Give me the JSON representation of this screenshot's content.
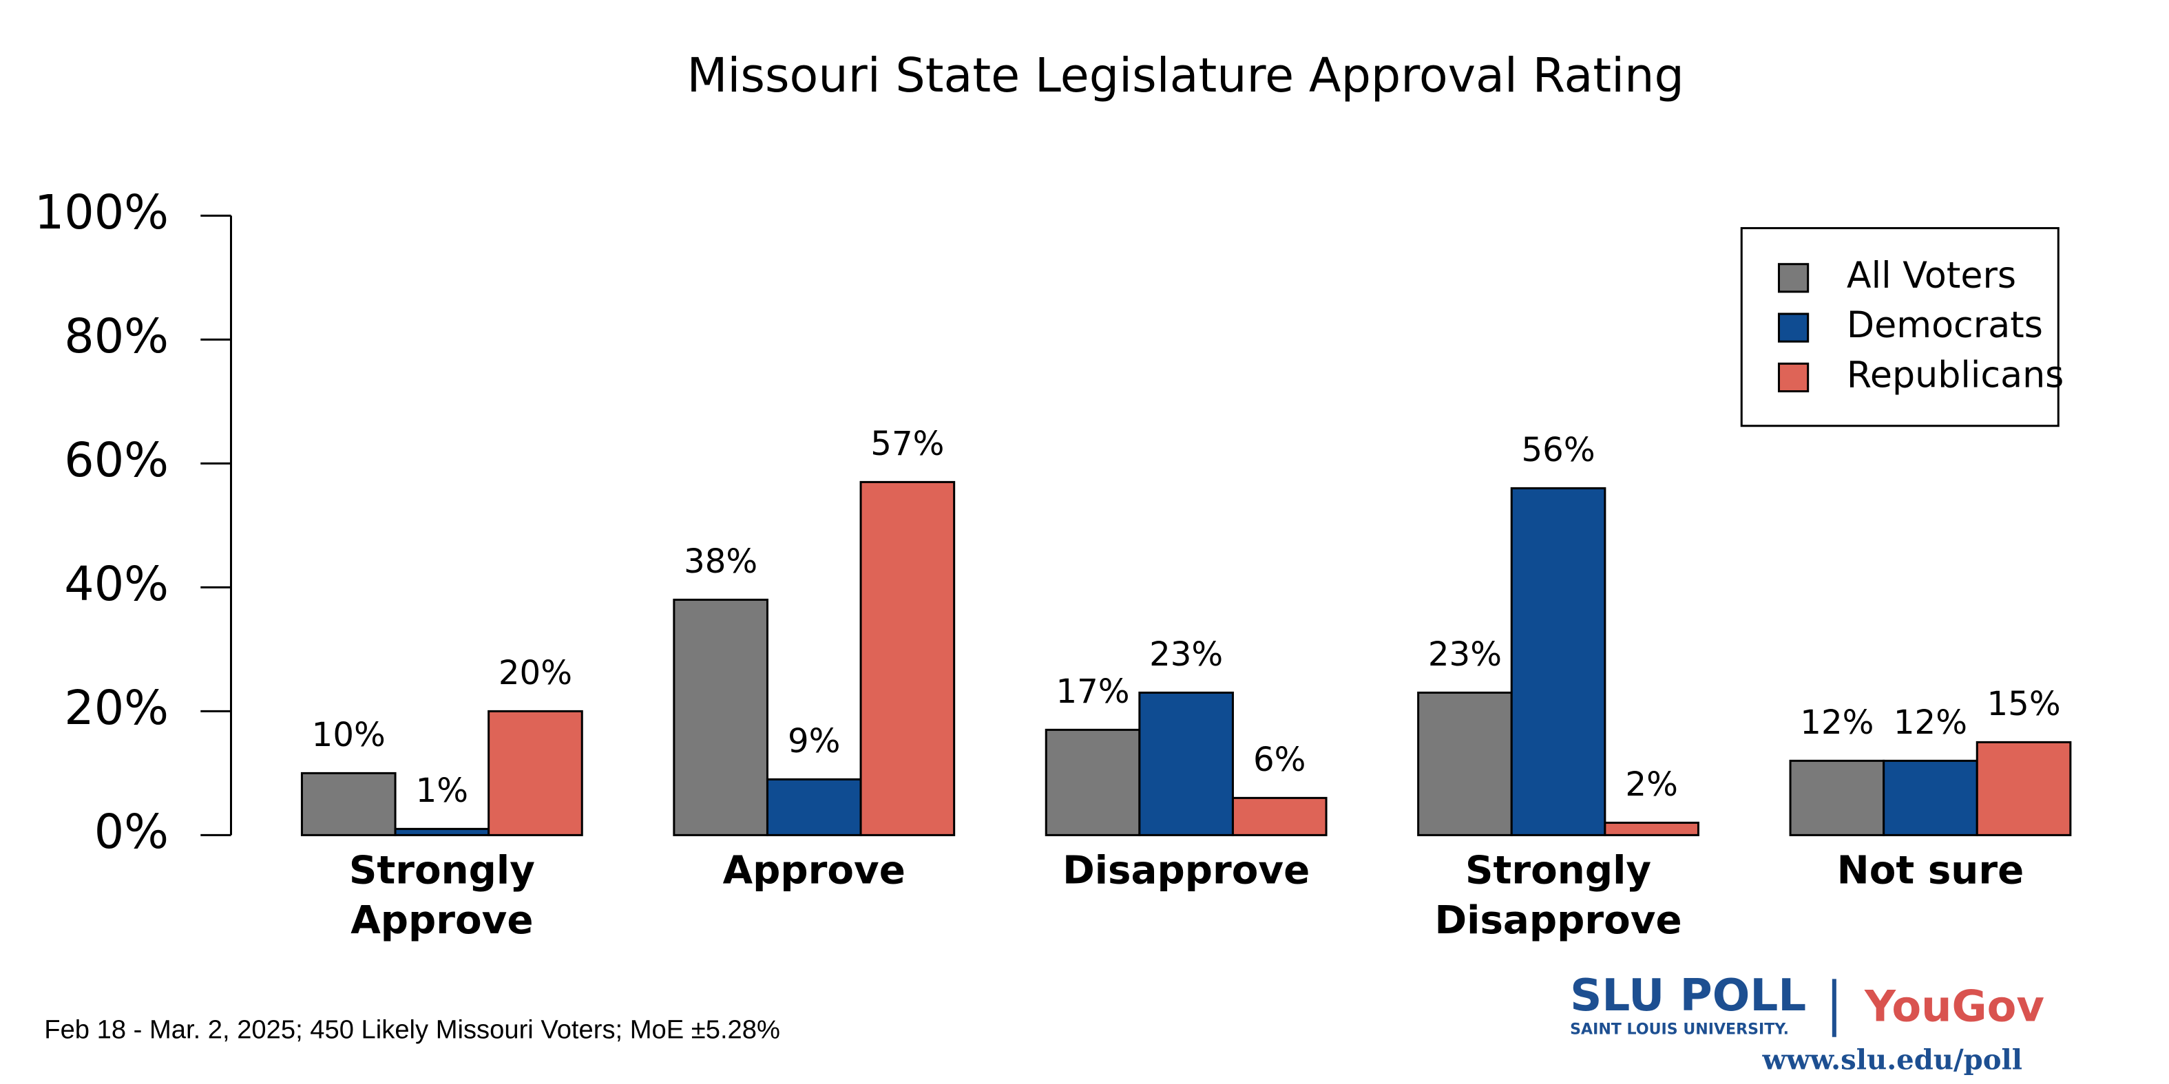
{
  "chart_data": {
    "type": "bar",
    "title": "Missouri State Legislature Approval Rating",
    "categories": [
      "Strongly Approve",
      "Approve",
      "Disapprove",
      "Strongly Disapprove",
      "Not sure"
    ],
    "series": [
      {
        "name": "All Voters",
        "color": "#7a7a7a",
        "values": [
          10,
          38,
          17,
          23,
          12
        ],
        "value_labels": [
          "10%",
          "38%",
          "17%",
          "23%",
          "12%"
        ]
      },
      {
        "name": "Democrats",
        "color": "#0f4c92",
        "values": [
          1,
          9,
          23,
          56,
          12
        ],
        "value_labels": [
          "1%",
          "9%",
          "23%",
          "56%",
          "12%"
        ]
      },
      {
        "name": "Republicans",
        "color": "#de6457",
        "values": [
          20,
          57,
          6,
          2,
          15
        ],
        "value_labels": [
          "20%",
          "57%",
          "6%",
          "2%",
          "15%"
        ]
      }
    ],
    "ylim": [
      0,
      100
    ],
    "yticks": [
      {
        "value": 0,
        "label": "0%"
      },
      {
        "value": 20,
        "label": "20%"
      },
      {
        "value": 40,
        "label": "40%"
      },
      {
        "value": 60,
        "label": "60%"
      },
      {
        "value": 80,
        "label": "80%"
      },
      {
        "value": 100,
        "label": "100%"
      }
    ],
    "grid": false,
    "legend": "top-right",
    "footnote": "Feb 18 - Mar. 2, 2025; 450 Likely Missouri Voters; MoE ±5.28%"
  },
  "logo": {
    "brand": "SLU POLL",
    "university": "SAINT LOUIS UNIVERSITY.",
    "partner": "YouGov",
    "url": "www.slu.edu/poll"
  }
}
